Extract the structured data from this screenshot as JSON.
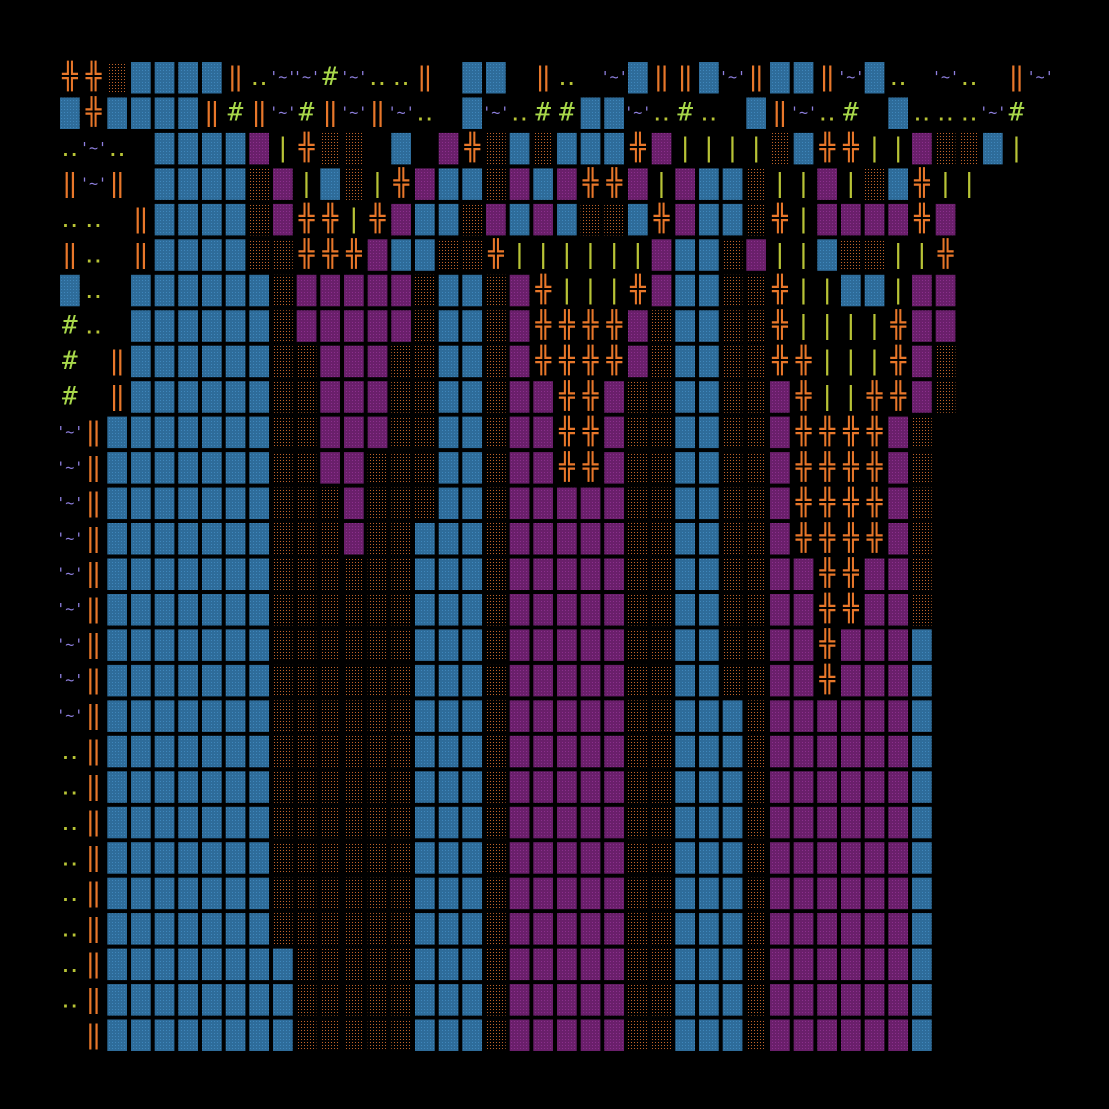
{
  "palette": {
    "background": "#000000",
    "blue": "#2e6c9a",
    "purple": "#6a1f6b",
    "brown": "#4a2810",
    "orange": "#e8772a",
    "yellow_green": "#b8c436",
    "green": "#a8d84a",
    "lavender": "#8f80e0"
  },
  "legend": {
    "B": "blue-block",
    "P": "purple-block",
    "D": "brown-dotted-block",
    "#": "orange-double-cross-glyph",
    "|": "yellow-bar-glyph",
    "H": "orange-double-bar-glyph",
    "~": "lavender-tilde-face-glyph",
    ":": "green-dots-glyph",
    "*": "green-hash-glyph",
    ".": "empty"
  },
  "rows": [
    "##DBBBBH:~~*~::H.BB.H:.~BHHB~HBBH~B:.~:.H~",
    "B#BBBBH*H~*H~H~:.B~:**BB~:*:.BH~:*.B:::~*",
    ":~:.BBBBP|#DD.B.P#DBDBBB#P||||DB##||PDDB|",
    "H~H.BBBBDP|BD|#PBBDPBP##P|PBBD||P|DB#||",
    "::.HBBBBDP##|#PBBDPBPBDDB#PBBD#|PPPP#P",
    "H:.HBBBBDD###PBBDD#||||||PBBDP||BDD||#",
    "B:.BBBBBBDPPPPPDBBDP#|||#PBBDD#||BB|PP",
    "*:.BBBBBBDPPPPPDBBDP####PDBBDD#||||#PP",
    "*.HBBBBBBDDPPPDDBBDP####PDBBDD##|||#PD",
    "*.HBBBBBBDDPPPDDBBDPP##PDDBBDDP#||##PD",
    "~HBBBBBBBDDPPPDDBBDPP##PDDBBDDP####PD",
    "~HBBBBBBBDDPPDDDBBDPP##PDDBBDDP####PD",
    "~HBBBBBBBDDDPDDDBBDPPPPPDDBBDDP####PD",
    "~HBBBBBBBDDDPDDBBBDPPPPPDDBBDDP####PD",
    "~HBBBBBBBDDDDDDBBBDPPPPPDDBBDDPP##PPD",
    "~HBBBBBBBDDDDDDBBBDPPPPPDDBBDDPP##PPD",
    "~HBBBBBBBDDDDDDBBBDPPPPPDDBBDDPP#PPPB",
    "~HBBBBBBBDDDDDDBBBDPPPPPDDBBDDPP#PPPB",
    "~HBBBBBBBDDDDDDBBBDPPPPPDDBBBDPPPPPPB",
    ":HBBBBBBBDDDDDDBBBDPPPPPDDBBBDPPPPPPB",
    ":HBBBBBBBDDDDDDBBBDPPPPPDDBBBDPPPPPPB",
    ":HBBBBBBBDDDDDDBBBDPPPPPDDBBBDPPPPPPB",
    ":HBBBBBBBDDDDDDBBBDPPPPPDDBBBDPPPPPPB",
    ":HBBBBBBBDDDDDDBBBDPPPPPDDBBBDPPPPPPB",
    ":HBBBBBBBDDDDDDBBBDPPPPPDDBBBDPPPPPPB",
    ":HBBBBBBBBDDDDDBBBDPPPPPDDBBBDPPPPPPB",
    ":HBBBBBBBBDDDDDBBBDPPPPPDDBBBDPPPPPPB",
    ".HBBBBBBBBDDDDDBBBDPPPPPDDBBBDPPPPPPB"
  ]
}
